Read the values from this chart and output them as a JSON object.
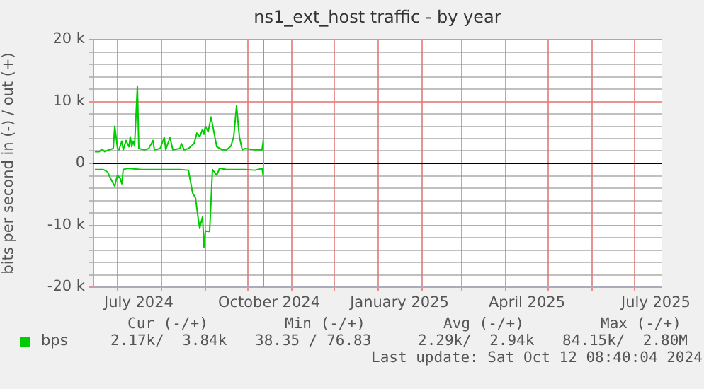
{
  "chart_data": {
    "type": "line",
    "title": "ns1_ext_host traffic - by year",
    "ylabel": "bits per second in (-) / out (+)",
    "marker": "none",
    "grid": true,
    "legend": "bottom",
    "xlim": [
      "2024-06-14",
      "2025-07-20"
    ],
    "xticks": [
      {
        "value": "2024-07-01",
        "label": null
      },
      {
        "value": "2024-07-16",
        "label": "July 2024"
      },
      {
        "value": "2024-08-01",
        "label": null
      },
      {
        "value": "2024-09-01",
        "label": null
      },
      {
        "value": "2024-10-01",
        "label": null
      },
      {
        "value": "2024-10-16",
        "label": "October 2024"
      },
      {
        "value": "2024-11-01",
        "label": null
      },
      {
        "value": "2024-12-01",
        "label": null
      },
      {
        "value": "2025-01-01",
        "label": null
      },
      {
        "value": "2025-01-16",
        "label": "January 2025"
      },
      {
        "value": "2025-02-01",
        "label": null
      },
      {
        "value": "2025-03-01",
        "label": null
      },
      {
        "value": "2025-04-01",
        "label": null
      },
      {
        "value": "2025-04-16",
        "label": "April 2025"
      },
      {
        "value": "2025-05-01",
        "label": null
      },
      {
        "value": "2025-06-01",
        "label": null
      },
      {
        "value": "2025-07-01",
        "label": null
      },
      {
        "value": "2025-07-16",
        "label": "July 2025"
      }
    ],
    "ylim": [
      -20000,
      20000
    ],
    "yticks": [
      {
        "value": -20000,
        "label": "-20 k"
      },
      {
        "value": -18000,
        "label": null
      },
      {
        "value": -16000,
        "label": null
      },
      {
        "value": -14000,
        "label": null
      },
      {
        "value": -12000,
        "label": null
      },
      {
        "value": -10000,
        "label": "-10 k"
      },
      {
        "value": -8000,
        "label": null
      },
      {
        "value": -6000,
        "label": null
      },
      {
        "value": -4000,
        "label": null
      },
      {
        "value": -2000,
        "label": null
      },
      {
        "value": 0,
        "label": "0"
      },
      {
        "value": 2000,
        "label": null
      },
      {
        "value": 4000,
        "label": null
      },
      {
        "value": 6000,
        "label": null
      },
      {
        "value": 8000,
        "label": null
      },
      {
        "value": 10000,
        "label": "10 k"
      },
      {
        "value": 12000,
        "label": null
      },
      {
        "value": 14000,
        "label": null
      },
      {
        "value": 16000,
        "label": null
      },
      {
        "value": 18000,
        "label": null
      },
      {
        "value": 20000,
        "label": "20 k"
      }
    ],
    "ref_lines": [
      {
        "axis": "y",
        "value": 0,
        "color": "#000000"
      },
      {
        "axis": "x",
        "value": "2024-10-12",
        "color": "#999999"
      }
    ],
    "annotations": [
      "Cur (-/+)",
      "Min (-/+)",
      "Avg (-/+)",
      "Max (-/+)",
      "2.17k/  3.84k",
      "38.35 / 76.83",
      "2.29k/  2.94k",
      "84.15k/  2.80M",
      "Last update: Sat Oct 12 08:40:04 2024"
    ],
    "series": [
      {
        "name": "bps",
        "color": "#00cc00",
        "x": [
          "2024-06-15",
          "2024-06-18",
          "2024-06-20",
          "2024-06-22",
          "2024-06-25",
          "2024-06-28",
          "2024-06-29",
          "2024-07-01",
          "2024-07-02",
          "2024-07-04",
          "2024-07-05",
          "2024-07-07",
          "2024-07-09",
          "2024-07-10",
          "2024-07-11",
          "2024-07-12",
          "2024-07-13",
          "2024-07-15",
          "2024-07-16",
          "2024-07-20",
          "2024-07-23",
          "2024-07-26",
          "2024-07-27",
          "2024-07-31",
          "2024-08-03",
          "2024-08-04",
          "2024-08-07",
          "2024-08-09",
          "2024-08-14",
          "2024-08-15",
          "2024-08-17",
          "2024-08-20",
          "2024-08-24",
          "2024-08-26",
          "2024-08-28",
          "2024-08-30",
          "2024-08-31",
          "2024-09-01",
          "2024-09-03",
          "2024-09-05",
          "2024-09-07",
          "2024-09-09",
          "2024-09-13",
          "2024-09-16",
          "2024-09-19",
          "2024-09-21",
          "2024-09-23",
          "2024-09-25",
          "2024-09-27",
          "2024-09-29",
          "2024-10-06",
          "2024-10-11",
          "2024-10-12"
        ],
        "values": [
          1900,
          1900,
          2300,
          1900,
          2200,
          2400,
          6000,
          2400,
          2200,
          3600,
          2200,
          3700,
          2700,
          4300,
          2700,
          3600,
          2800,
          12500,
          2400,
          2200,
          2400,
          3700,
          2200,
          2400,
          4200,
          2200,
          4200,
          2200,
          2400,
          3200,
          2200,
          2400,
          3200,
          4900,
          4300,
          5500,
          4700,
          6000,
          5100,
          7500,
          5100,
          2700,
          2200,
          2200,
          2800,
          4300,
          9300,
          4300,
          2200,
          2400,
          2200,
          2200,
          3900
        ]
      },
      {
        "color": "#00cc00",
        "x": [
          "2024-06-15",
          "2024-06-21",
          "2024-06-24",
          "2024-06-26",
          "2024-06-29",
          "2024-06-30",
          "2024-07-01",
          "2024-07-03",
          "2024-07-04",
          "2024-07-05",
          "2024-07-08",
          "2024-07-18",
          "2024-08-14",
          "2024-08-20",
          "2024-08-23",
          "2024-08-25",
          "2024-08-27",
          "2024-08-28",
          "2024-08-30",
          "2024-08-31",
          "2024-09-01",
          "2024-09-03",
          "2024-09-04",
          "2024-09-06",
          "2024-09-09",
          "2024-09-11",
          "2024-09-16",
          "2024-09-29",
          "2024-10-06",
          "2024-10-11",
          "2024-10-12"
        ],
        "values": [
          -1000,
          -1000,
          -1400,
          -2400,
          -3700,
          -2700,
          -1900,
          -2500,
          -3300,
          -1000,
          -800,
          -1000,
          -1000,
          -1100,
          -4800,
          -5600,
          -9000,
          -10500,
          -8600,
          -13500,
          -10900,
          -11000,
          -11000,
          -1000,
          -1900,
          -800,
          -1000,
          -1000,
          -1100,
          -800,
          -2200
        ]
      }
    ]
  }
}
